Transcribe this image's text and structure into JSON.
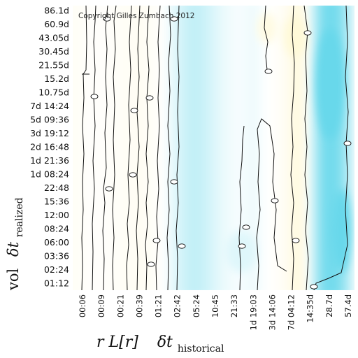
{
  "chart_data": {
    "type": "heatmap",
    "copyright": "Copyright Gilles Zumbach 2012",
    "y_labels": [
      "86.1d",
      "60.9d",
      "43.05d",
      "30.45d",
      "21.55d",
      "15.2d",
      "10.75d",
      "7d 14:24",
      "5d 09:36",
      "3d 19:12",
      "2d 16:48",
      "1d 21:36",
      "1d 08:24",
      "22:48",
      "15:36",
      "12:00",
      "08:24",
      "06:00",
      "03:36",
      "02:24",
      "01:12"
    ],
    "x_labels": [
      "00:06",
      "00:09",
      "00:21",
      "00:39",
      "01:21",
      "02:42",
      "05:24",
      "10:45",
      "21:33",
      "1d 19:03",
      "3d 14:06",
      "7d 04:12",
      "14:35d",
      "28.7d",
      "57.4d"
    ],
    "y_axis_label": {
      "prefix": "vol",
      "symbol": "δt",
      "subscript": "realized"
    },
    "x_axis_label": {
      "function": "r L[r]",
      "symbol": "δt",
      "subscript": "historical"
    },
    "colors": {
      "low": "#5fd6ea",
      "mid": "#ffffff",
      "high": "#fff3b0"
    },
    "field_profile": [
      {
        "x": 0.0,
        "v": 0.05
      },
      {
        "x": 1.0,
        "v": 0.05
      },
      {
        "x": 2.0,
        "v": 0.1
      },
      {
        "x": 3.0,
        "v": 0.15
      },
      {
        "x": 4.0,
        "v": 0.05
      },
      {
        "x": 4.5,
        "v": -0.1
      },
      {
        "x": 5.0,
        "v": -0.25
      },
      {
        "x": 5.8,
        "v": -0.4
      },
      {
        "x": 6.5,
        "v": -0.3
      },
      {
        "x": 7.2,
        "v": -0.15
      },
      {
        "x": 8.0,
        "v": -0.05
      },
      {
        "x": 9.0,
        "v": -0.1
      },
      {
        "x": 10.0,
        "v": 0.05
      },
      {
        "x": 10.6,
        "v": 0.15
      },
      {
        "x": 11.2,
        "v": 0.4
      },
      {
        "x": 11.6,
        "v": 0.3
      },
      {
        "x": 12.0,
        "v": -0.3
      },
      {
        "x": 12.6,
        "v": -0.85
      },
      {
        "x": 13.2,
        "v": -0.9
      },
      {
        "x": 13.8,
        "v": -0.6
      },
      {
        "x": 14.2,
        "v": -0.2
      },
      {
        "x": 14.6,
        "v": 0.1
      }
    ]
  }
}
